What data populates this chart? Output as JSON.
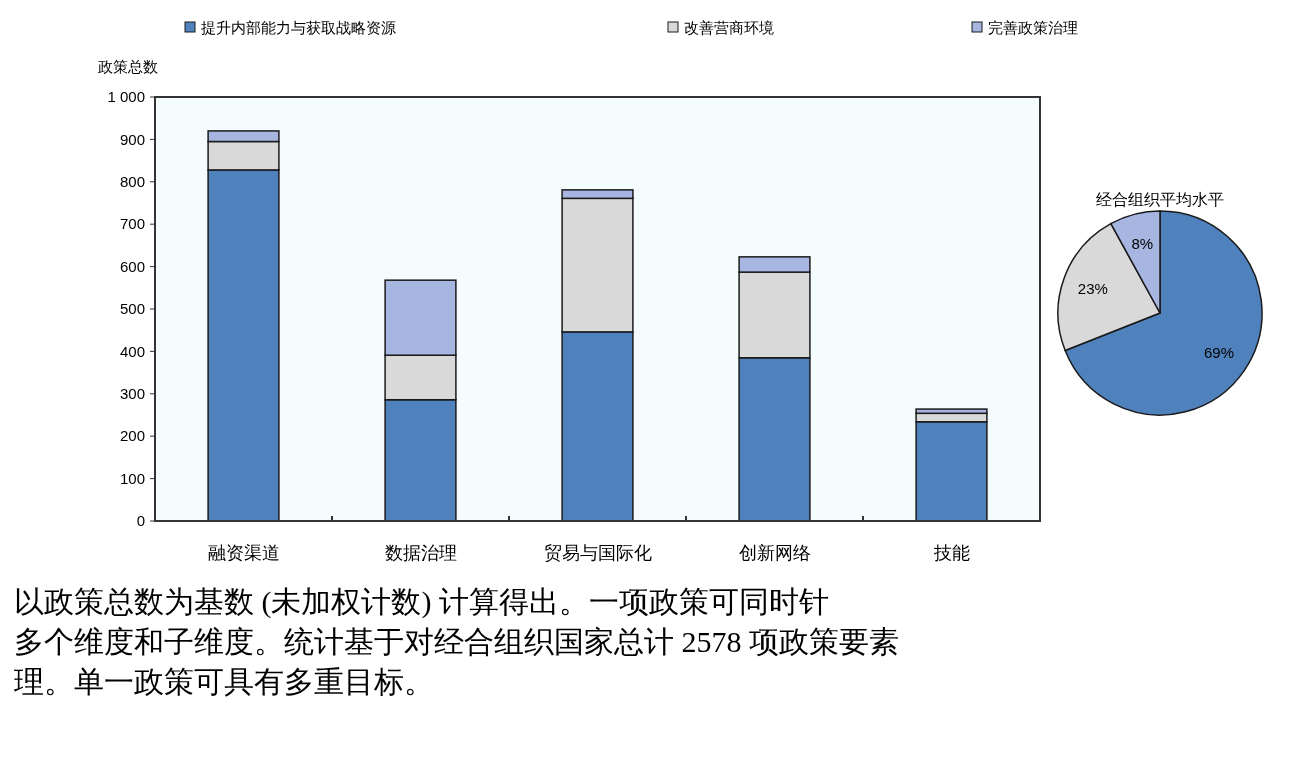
{
  "chart_data": [
    {
      "type": "bar",
      "stacked": true,
      "ylabel": "政策总数",
      "categories": [
        "融资渠道",
        "数据治理",
        "贸易与国际化",
        "创新网络",
        "技能"
      ],
      "series": [
        {
          "name": "提升内部能力与获取战略资源",
          "color": "#4f81bd",
          "values": [
            828,
            286,
            446,
            385,
            234
          ]
        },
        {
          "name": "改善营商环境",
          "color": "#d9d9d9",
          "values": [
            67,
            105,
            315,
            202,
            20
          ]
        },
        {
          "name": "完善政策治理",
          "color": "#a6b6e0",
          "values": [
            25,
            177,
            20,
            36,
            10
          ]
        }
      ],
      "ylim": [
        0,
        1000
      ],
      "yticks": [
        0,
        100,
        200,
        300,
        400,
        500,
        600,
        700,
        800,
        900,
        {
          "value": 1000,
          "label": "1 000"
        }
      ],
      "grid": false,
      "legend": "top",
      "annotations": [
        "以政策总数为基数 (未加权计数) 计算得出。一项政策可同时针",
        "多个维度和子维度。统计基于对经合组织国家总计 2578 项政策要素",
        "理。单一政策可具有多重目标。"
      ]
    },
    {
      "type": "pie",
      "title": "经合组织平均水平",
      "categories": [
        null,
        null,
        null
      ],
      "values": [
        69,
        23,
        8
      ],
      "colors": [
        "#4f81bd",
        "#d9d9d9",
        "#a6b6e0"
      ],
      "value_labels": [
        "69%",
        "23%",
        "8%"
      ]
    }
  ]
}
